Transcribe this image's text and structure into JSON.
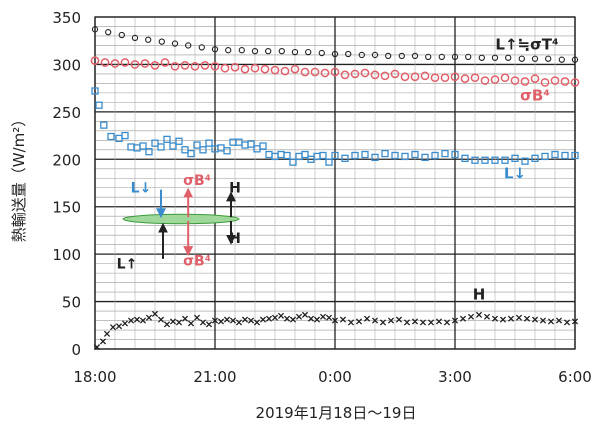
{
  "chart_data": {
    "type": "scatter",
    "ylabel": "熱輸送量（W/m²）",
    "xlabel": "2019年1月18日～19日",
    "ylim": [
      0,
      350
    ],
    "yticks": [
      0,
      50,
      100,
      150,
      200,
      250,
      300,
      350
    ],
    "xlim": [
      0,
      12
    ],
    "xticks": [
      {
        "x": 0,
        "label": "18:00"
      },
      {
        "x": 3,
        "label": "21:00"
      },
      {
        "x": 6,
        "label": "0:00"
      },
      {
        "x": 9,
        "label": "3:00"
      },
      {
        "x": 12,
        "label": "6:00"
      }
    ],
    "x_unit": "hours after 18:00 on 2019-01-18",
    "grid": true,
    "series": [
      {
        "name": "L↑≒σT⁴",
        "marker": "circle",
        "color": "#222222",
        "label_pos": [
          10.8,
          316
        ],
        "points": [
          [
            0.0,
            337
          ],
          [
            0.33,
            334
          ],
          [
            0.67,
            331
          ],
          [
            1.0,
            328
          ],
          [
            1.33,
            326
          ],
          [
            1.67,
            324
          ],
          [
            2.0,
            322
          ],
          [
            2.33,
            320
          ],
          [
            2.67,
            318
          ],
          [
            3.0,
            316
          ],
          [
            3.33,
            315
          ],
          [
            3.67,
            315
          ],
          [
            4.0,
            314
          ],
          [
            4.33,
            314
          ],
          [
            4.67,
            314
          ],
          [
            5.0,
            313
          ],
          [
            5.33,
            313
          ],
          [
            5.67,
            312
          ],
          [
            6.0,
            311
          ],
          [
            6.33,
            311
          ],
          [
            6.67,
            310
          ],
          [
            7.0,
            310
          ],
          [
            7.33,
            309
          ],
          [
            7.67,
            309
          ],
          [
            8.0,
            309
          ],
          [
            8.33,
            308
          ],
          [
            8.67,
            308
          ],
          [
            9.0,
            308
          ],
          [
            9.33,
            308
          ],
          [
            9.67,
            307
          ],
          [
            10.0,
            307
          ],
          [
            10.33,
            307
          ],
          [
            10.67,
            306
          ],
          [
            11.0,
            306
          ],
          [
            11.33,
            306
          ],
          [
            11.67,
            305
          ],
          [
            12.0,
            305
          ]
        ]
      },
      {
        "name": "σB⁴",
        "marker": "ring",
        "color": "#e0606a",
        "label_pos": [
          11.0,
          262
        ],
        "points": [
          [
            0.0,
            304
          ],
          [
            0.25,
            302
          ],
          [
            0.5,
            301
          ],
          [
            0.75,
            302
          ],
          [
            1.0,
            300
          ],
          [
            1.25,
            301
          ],
          [
            1.5,
            299
          ],
          [
            1.75,
            302
          ],
          [
            2.0,
            298
          ],
          [
            2.25,
            299
          ],
          [
            2.5,
            298
          ],
          [
            2.75,
            299
          ],
          [
            3.0,
            298
          ],
          [
            3.25,
            296
          ],
          [
            3.5,
            297
          ],
          [
            3.75,
            295
          ],
          [
            4.0,
            296
          ],
          [
            4.25,
            295
          ],
          [
            4.5,
            294
          ],
          [
            4.75,
            293
          ],
          [
            5.0,
            295
          ],
          [
            5.25,
            292
          ],
          [
            5.5,
            292
          ],
          [
            5.75,
            291
          ],
          [
            6.0,
            292
          ],
          [
            6.25,
            289
          ],
          [
            6.5,
            290
          ],
          [
            6.75,
            291
          ],
          [
            7.0,
            289
          ],
          [
            7.25,
            288
          ],
          [
            7.5,
            290
          ],
          [
            7.75,
            287
          ],
          [
            8.0,
            287
          ],
          [
            8.25,
            288
          ],
          [
            8.5,
            286
          ],
          [
            8.75,
            286
          ],
          [
            9.0,
            287
          ],
          [
            9.25,
            285
          ],
          [
            9.5,
            286
          ],
          [
            9.75,
            283
          ],
          [
            10.0,
            284
          ],
          [
            10.25,
            286
          ],
          [
            10.5,
            283
          ],
          [
            10.75,
            282
          ],
          [
            11.0,
            285
          ],
          [
            11.25,
            281
          ],
          [
            11.5,
            283
          ],
          [
            11.75,
            282
          ],
          [
            12.0,
            281
          ]
        ]
      },
      {
        "name": "L↓",
        "marker": "square",
        "color": "#3a8ccc",
        "label_pos": [
          10.5,
          180
        ],
        "points": [
          [
            0.0,
            272
          ],
          [
            0.1,
            257
          ],
          [
            0.22,
            236
          ],
          [
            0.4,
            224
          ],
          [
            0.6,
            222
          ],
          [
            0.75,
            225
          ],
          [
            0.9,
            213
          ],
          [
            1.05,
            212
          ],
          [
            1.2,
            214
          ],
          [
            1.35,
            208
          ],
          [
            1.5,
            217
          ],
          [
            1.65,
            213
          ],
          [
            1.8,
            221
          ],
          [
            1.95,
            214
          ],
          [
            2.1,
            219
          ],
          [
            2.25,
            210
          ],
          [
            2.4,
            206
          ],
          [
            2.55,
            215
          ],
          [
            2.7,
            210
          ],
          [
            2.85,
            217
          ],
          [
            3.0,
            211
          ],
          [
            3.15,
            212
          ],
          [
            3.3,
            209
          ],
          [
            3.45,
            218
          ],
          [
            3.6,
            218
          ],
          [
            3.75,
            215
          ],
          [
            3.9,
            216
          ],
          [
            4.05,
            211
          ],
          [
            4.2,
            214
          ],
          [
            4.35,
            205
          ],
          [
            4.5,
            203
          ],
          [
            4.65,
            205
          ],
          [
            4.8,
            204
          ],
          [
            4.95,
            197
          ],
          [
            5.1,
            203
          ],
          [
            5.25,
            205
          ],
          [
            5.4,
            200
          ],
          [
            5.55,
            203
          ],
          [
            5.7,
            204
          ],
          [
            5.85,
            197
          ],
          [
            6.0,
            204
          ],
          [
            6.25,
            201
          ],
          [
            6.5,
            204
          ],
          [
            6.75,
            205
          ],
          [
            7.0,
            202
          ],
          [
            7.25,
            206
          ],
          [
            7.5,
            204
          ],
          [
            7.75,
            203
          ],
          [
            8.0,
            205
          ],
          [
            8.25,
            202
          ],
          [
            8.5,
            204
          ],
          [
            8.75,
            206
          ],
          [
            9.0,
            205
          ],
          [
            9.25,
            201
          ],
          [
            9.5,
            199
          ],
          [
            9.75,
            199
          ],
          [
            10.0,
            199
          ],
          [
            10.25,
            199
          ],
          [
            10.5,
            201
          ],
          [
            10.75,
            198
          ],
          [
            11.0,
            201
          ],
          [
            11.25,
            203
          ],
          [
            11.5,
            205
          ],
          [
            11.75,
            204
          ],
          [
            12.0,
            204
          ]
        ]
      },
      {
        "name": "H",
        "marker": "x",
        "color": "#222222",
        "label_pos": [
          9.6,
          52
        ],
        "points": [
          [
            0.05,
            2
          ],
          [
            0.2,
            8
          ],
          [
            0.3,
            16
          ],
          [
            0.45,
            23
          ],
          [
            0.6,
            24
          ],
          [
            0.75,
            27
          ],
          [
            0.9,
            30
          ],
          [
            1.05,
            31
          ],
          [
            1.2,
            30
          ],
          [
            1.35,
            33
          ],
          [
            1.5,
            37
          ],
          [
            1.65,
            31
          ],
          [
            1.8,
            26
          ],
          [
            1.95,
            29
          ],
          [
            2.1,
            28
          ],
          [
            2.25,
            32
          ],
          [
            2.4,
            27
          ],
          [
            2.55,
            33
          ],
          [
            2.7,
            28
          ],
          [
            2.85,
            26
          ],
          [
            3.0,
            30
          ],
          [
            3.15,
            29
          ],
          [
            3.3,
            31
          ],
          [
            3.45,
            30
          ],
          [
            3.6,
            28
          ],
          [
            3.75,
            31
          ],
          [
            3.9,
            30
          ],
          [
            4.05,
            28
          ],
          [
            4.2,
            31
          ],
          [
            4.35,
            32
          ],
          [
            4.5,
            33
          ],
          [
            4.65,
            35
          ],
          [
            4.8,
            32
          ],
          [
            4.95,
            31
          ],
          [
            5.1,
            34
          ],
          [
            5.25,
            36
          ],
          [
            5.4,
            32
          ],
          [
            5.55,
            31
          ],
          [
            5.7,
            34
          ],
          [
            5.85,
            33
          ],
          [
            6.0,
            30
          ],
          [
            6.2,
            31
          ],
          [
            6.4,
            28
          ],
          [
            6.6,
            29
          ],
          [
            6.8,
            32
          ],
          [
            7.0,
            30
          ],
          [
            7.2,
            28
          ],
          [
            7.4,
            30
          ],
          [
            7.6,
            31
          ],
          [
            7.8,
            28
          ],
          [
            8.0,
            29
          ],
          [
            8.2,
            28
          ],
          [
            8.4,
            28
          ],
          [
            8.6,
            29
          ],
          [
            8.8,
            28
          ],
          [
            9.0,
            30
          ],
          [
            9.2,
            32
          ],
          [
            9.4,
            34
          ],
          [
            9.6,
            36
          ],
          [
            9.8,
            34
          ],
          [
            10.0,
            32
          ],
          [
            10.2,
            31
          ],
          [
            10.4,
            32
          ],
          [
            10.6,
            33
          ],
          [
            10.8,
            32
          ],
          [
            11.0,
            31
          ],
          [
            11.2,
            30
          ],
          [
            11.4,
            29
          ],
          [
            11.6,
            30
          ],
          [
            11.8,
            28
          ],
          [
            12.0,
            29
          ]
        ]
      }
    ],
    "inset_diagram": {
      "ellipse_center": [
        2.15,
        137
      ],
      "ellipse_rx": 1.45,
      "ellipse_ry": 5,
      "ellipse_color": "#9fd89a",
      "labels": [
        {
          "text": "L↓",
          "color": "#3a8ccc",
          "pos": [
            1.15,
            165
          ]
        },
        {
          "text": "σB⁴",
          "color": "#e0606a",
          "pos": [
            2.55,
            173
          ]
        },
        {
          "text": "H",
          "color": "#222222",
          "pos": [
            3.5,
            165
          ]
        },
        {
          "text": "H",
          "color": "#222222",
          "pos": [
            3.5,
            112
          ]
        },
        {
          "text": "L↑",
          "color": "#222222",
          "pos": [
            0.8,
            85
          ]
        },
        {
          "text": "σB⁴",
          "color": "#e0606a",
          "pos": [
            2.55,
            88
          ]
        }
      ],
      "arrows": [
        {
          "name": "l-down-arrow",
          "color": "#3a8ccc",
          "x": 1.65,
          "y_from": 168,
          "y_to": 140
        },
        {
          "name": "l-up-arrow",
          "color": "#222222",
          "x": 1.7,
          "y_from": 95,
          "y_to": 131
        },
        {
          "name": "sigma-up-arrow",
          "color": "#e0606a",
          "x": 2.33,
          "y_from": 139,
          "y_to": 168
        },
        {
          "name": "sigma-down-arrow",
          "color": "#e0606a",
          "x": 2.33,
          "y_from": 135,
          "y_to": 100
        },
        {
          "name": "h-up-arrow",
          "color": "#222222",
          "x": 3.4,
          "y_from": 139,
          "y_to": 164
        },
        {
          "name": "h-down-arrow",
          "color": "#222222",
          "x": 3.4,
          "y_from": 135,
          "y_to": 112
        }
      ]
    }
  }
}
